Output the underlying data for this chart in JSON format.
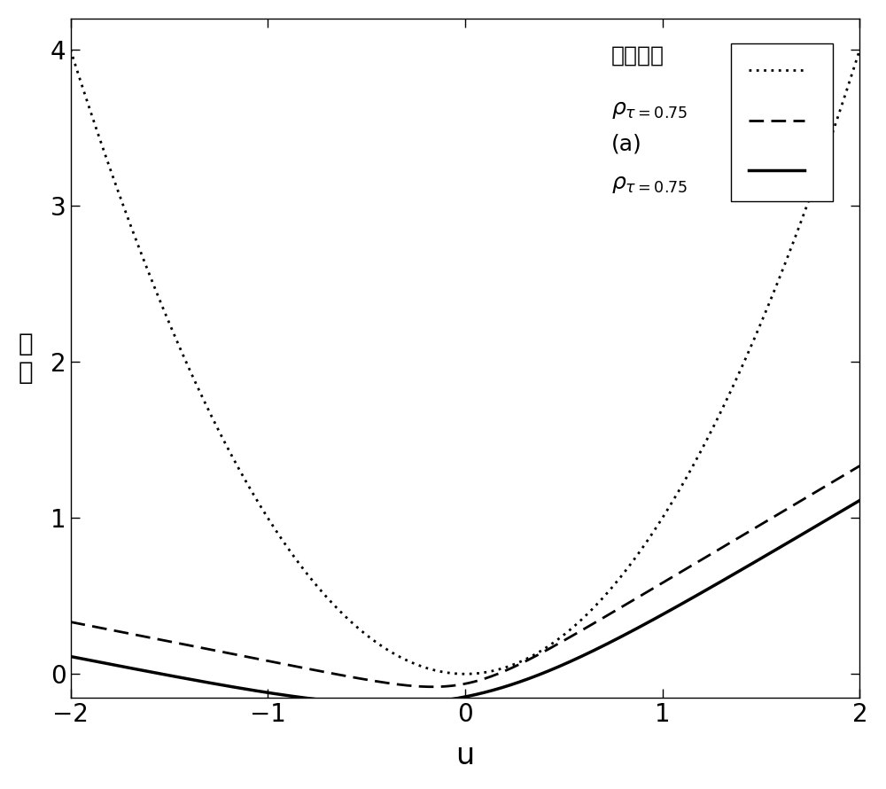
{
  "title": "",
  "xlabel": "u",
  "ylabel": "函\n数",
  "xlim": [
    -2,
    2
  ],
  "ylim": [
    -0.15,
    4.2
  ],
  "yticks": [
    0,
    1,
    2,
    3,
    4
  ],
  "xticks": [
    -2,
    -1,
    0,
    1,
    2
  ],
  "tau": 0.75,
  "line_color": "#000000",
  "background_color": "#ffffff",
  "quad_label": "二次函数",
  "dash_label_line1": "ρτ=0.75",
  "dash_label_line2": "(a)",
  "solid_label": "ρτ=0.75"
}
